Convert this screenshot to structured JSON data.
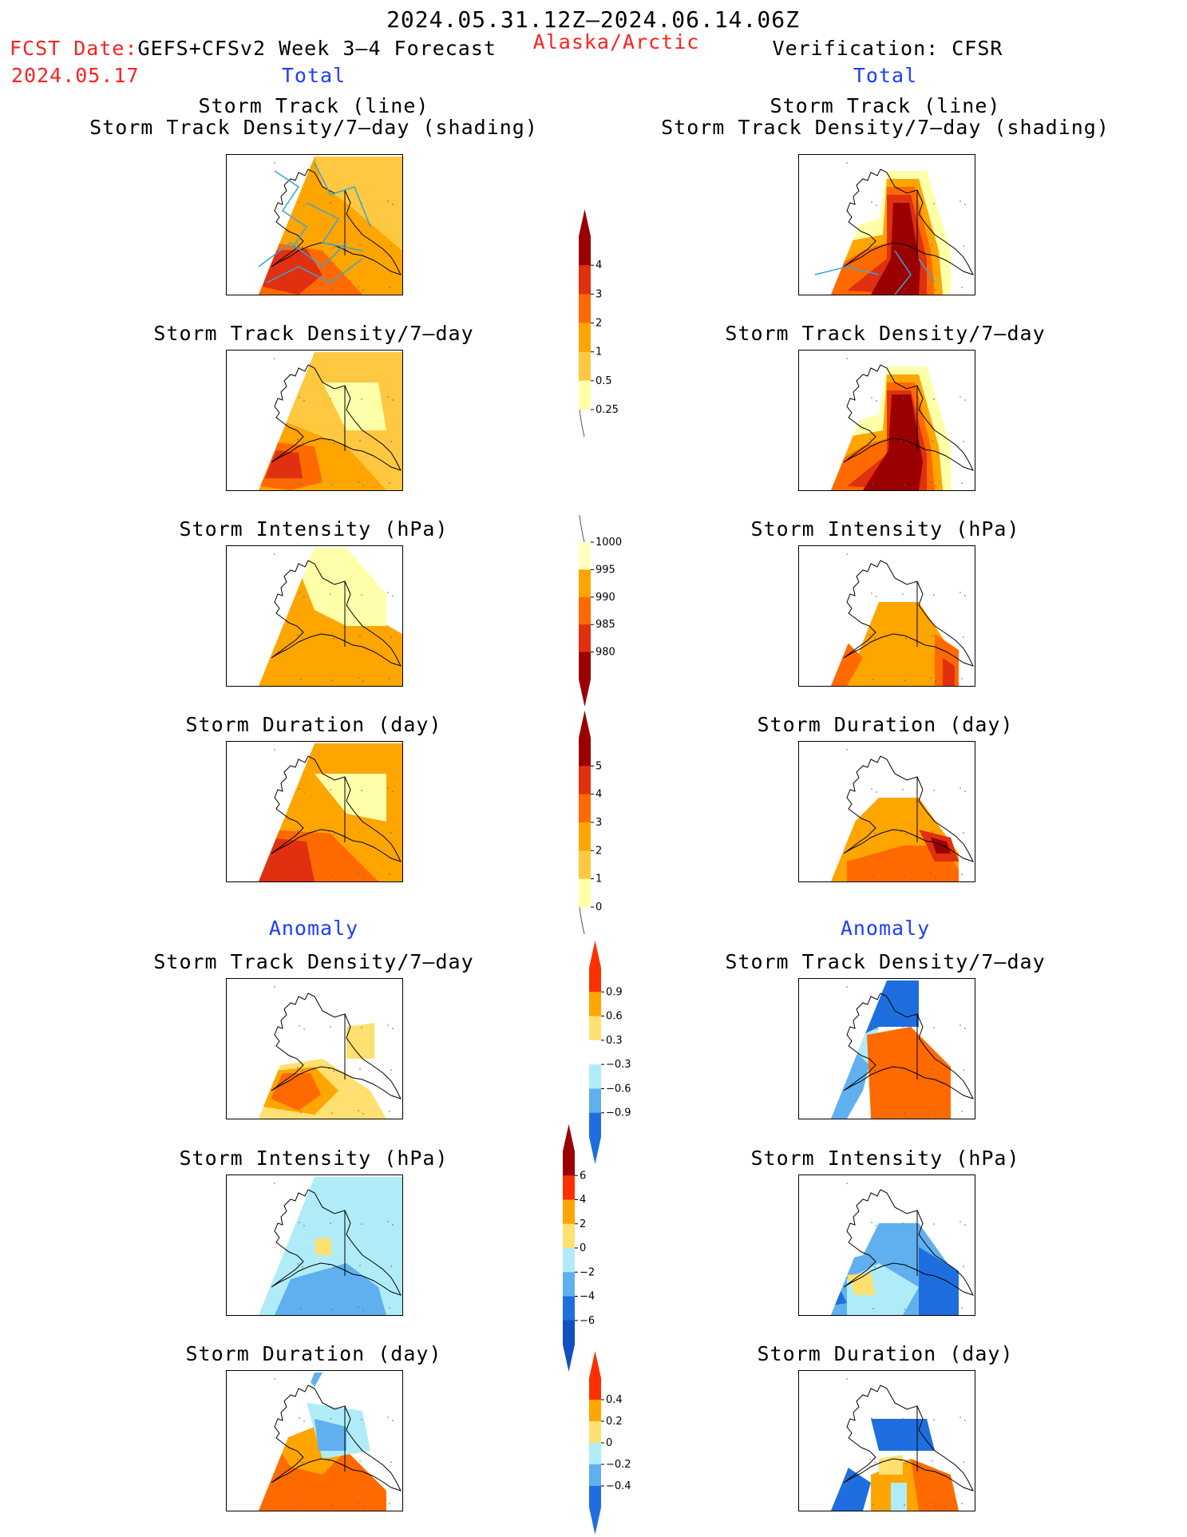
{
  "header": {
    "period": "2024.05.31.12Z–2024.06.14.06Z",
    "fcst_label": "FCST Date:",
    "model": "GEFS+CFSv2 Week 3–4 Forecast",
    "fcst_date": "2024.05.17",
    "region": "Alaska/Arctic",
    "verification": "Verification: CFSR"
  },
  "columns": {
    "left_total": "Total",
    "right_total": "Total",
    "left_anomaly": "Anomaly",
    "right_anomaly": "Anomaly"
  },
  "titles": {
    "track_line": "Storm Track (line)",
    "track_shading": "Storm Track Density/7–day (shading)",
    "density": "Storm Track Density/7–day",
    "intensity": "Storm Intensity (hPa)",
    "duration": "Storm Duration (day)"
  },
  "colorbars": {
    "density_total": {
      "ticks": [
        "4",
        "3",
        "2",
        "1",
        "0.5",
        "0.25"
      ],
      "colors": [
        "#9b0000",
        "#e03010",
        "#ff6a00",
        "#ffa500",
        "#ffc840",
        "#ffffaa"
      ]
    },
    "intensity_total": {
      "ticks": [
        "1000",
        "995",
        "990",
        "985",
        "980"
      ],
      "colors": [
        "#ffffc0",
        "#ffa500",
        "#ff6a00",
        "#e03010",
        "#9b0000"
      ]
    },
    "duration_total": {
      "ticks": [
        "5",
        "4",
        "3",
        "2",
        "1",
        "0"
      ],
      "colors": [
        "#9b0000",
        "#e03010",
        "#ff6a00",
        "#ffa500",
        "#ffc840",
        "#ffffaa"
      ]
    },
    "density_anom": {
      "ticks": [
        "0.9",
        "0.6",
        "0.3",
        "−0.3",
        "−0.6",
        "−0.9"
      ],
      "colors": [
        "#ff3000",
        "#ffa500",
        "#ffe070",
        "#ffffff",
        "#b0ecf8",
        "#60b0f0",
        "#1e6ee0"
      ]
    },
    "intensity_anom": {
      "ticks": [
        "6",
        "4",
        "2",
        "0",
        "−2",
        "−4",
        "−6"
      ],
      "colors": [
        "#9b0000",
        "#ff3000",
        "#ffa500",
        "#ffe070",
        "#b0ecf8",
        "#60b0f0",
        "#1e6ee0",
        "#1050c0"
      ]
    },
    "duration_anom": {
      "ticks": [
        "0.4",
        "0.2",
        "0",
        "−0.2",
        "−0.4"
      ],
      "colors": [
        "#ff3000",
        "#ffa500",
        "#ffe070",
        "#b0ecf8",
        "#60b0f0",
        "#1e6ee0"
      ]
    }
  }
}
